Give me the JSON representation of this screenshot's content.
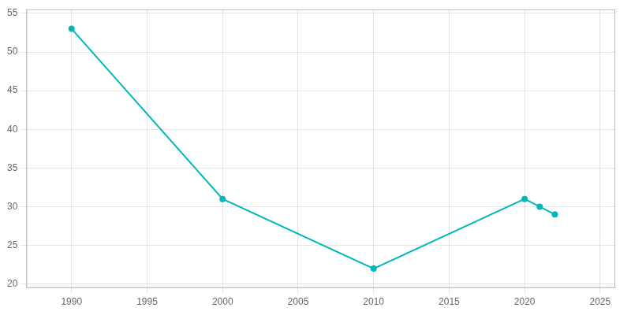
{
  "chart_data": {
    "type": "line",
    "x": [
      1990,
      2000,
      2010,
      2020,
      2021,
      2022
    ],
    "values": [
      53,
      31,
      22,
      31,
      30,
      29
    ],
    "color": "#00b8b8",
    "marker": "circle",
    "xlim": [
      1987,
      2026
    ],
    "xticks": [
      1990,
      1995,
      2000,
      2005,
      2010,
      2015,
      2020,
      2025
    ],
    "ylim": [
      19.5,
      55.5
    ],
    "yticks": [
      20,
      25,
      30,
      35,
      40,
      45,
      50,
      55
    ],
    "grid": true
  }
}
